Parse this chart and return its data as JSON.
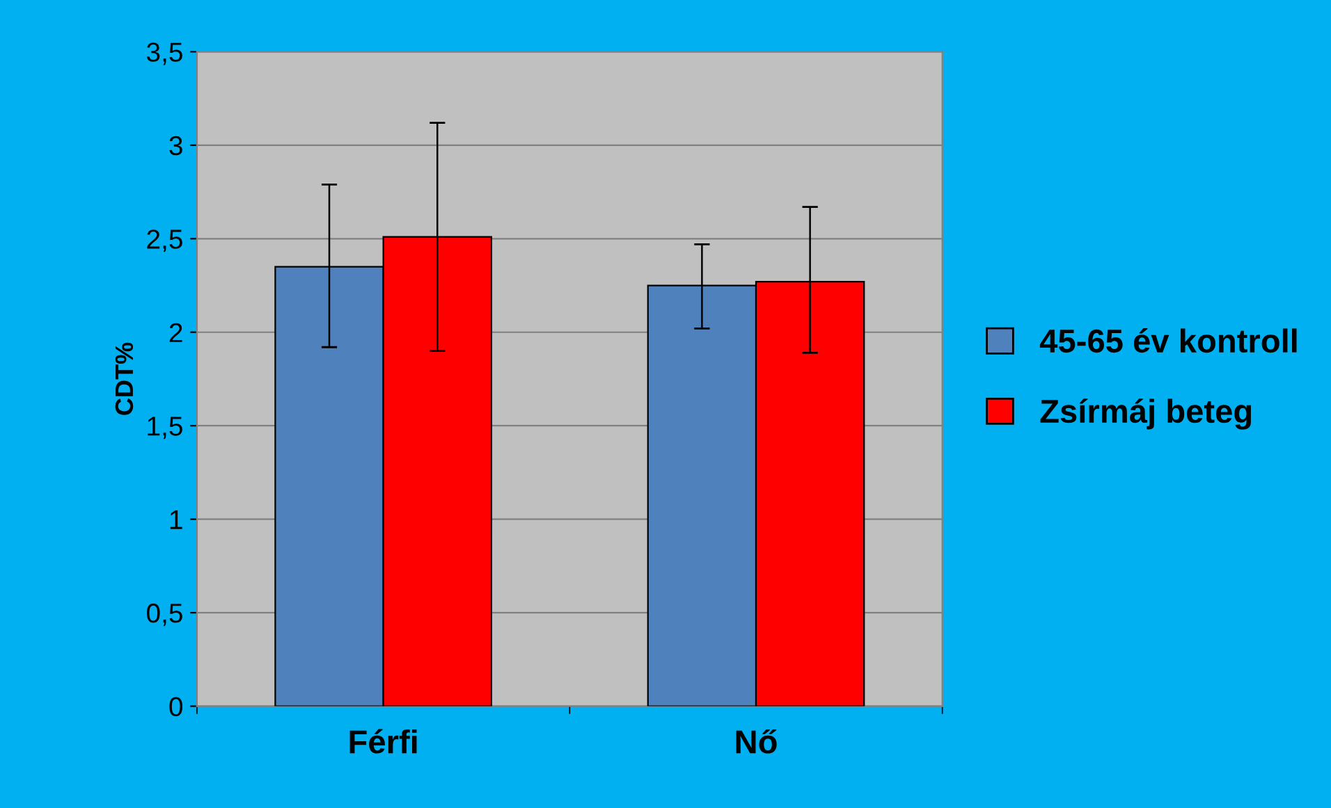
{
  "chart_data": {
    "type": "bar",
    "ylabel": "CDT%",
    "categories": [
      "Férfi",
      "Nő"
    ],
    "series": [
      {
        "name": "45-65 év kontroll",
        "color": "#4f81bd",
        "values": [
          2.35,
          2.25
        ],
        "errors": [
          [
            1.92,
            2.79
          ],
          [
            2.02,
            2.47
          ]
        ]
      },
      {
        "name": "Zsírmáj beteg",
        "color": "#ff0000",
        "values": [
          2.51,
          2.27
        ],
        "errors": [
          [
            1.9,
            3.12
          ],
          [
            1.89,
            2.67
          ]
        ]
      }
    ],
    "ylim": [
      0,
      3.5
    ],
    "yticks": [
      0,
      {
        "value": 0.5,
        "label": "0,5"
      },
      1,
      {
        "value": 1.5,
        "label": "1,5"
      },
      2,
      {
        "value": 2.5,
        "label": "2,5"
      },
      3,
      {
        "value": 3.5,
        "label": "3,5"
      }
    ],
    "grid": "y",
    "legend": "right"
  }
}
